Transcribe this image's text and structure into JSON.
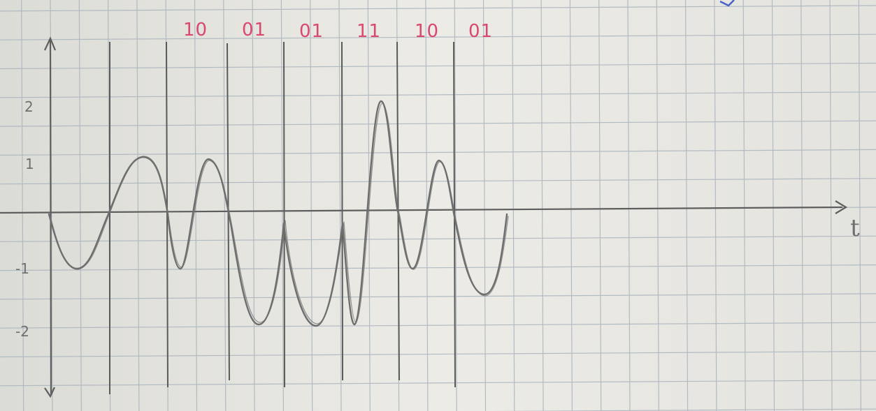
{
  "photo": {
    "subject": "hand-drawn waveform on grid paper",
    "paper_color": "#e9e8e3",
    "grid_color": "#a9b3bd",
    "pencil_color": "#6e6e6e",
    "ink_color": "#d9486e"
  },
  "bit_labels": [
    "10",
    "01",
    "01",
    "11",
    "10",
    "01"
  ],
  "y_tick_labels": [
    "2",
    "1",
    "-1",
    "-2"
  ],
  "time_axis_label": "t"
}
